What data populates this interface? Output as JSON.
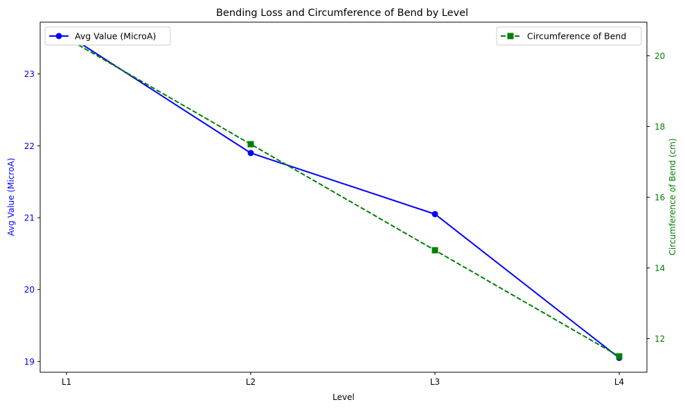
{
  "chart_data": {
    "type": "line",
    "title": "Bending Loss and Circumference of Bend by Level",
    "xlabel": "Level",
    "categories": [
      "L1",
      "L2",
      "L3",
      "L4"
    ],
    "y_left": {
      "label": "Avg Value (MicroA)",
      "ticks": [
        19,
        20,
        21,
        22,
        23
      ],
      "ylim": [
        18.85,
        23.72
      ],
      "color": "#0000ff"
    },
    "y_right": {
      "label": "Circumference of Bend (cm)",
      "ticks": [
        12,
        14,
        16,
        18,
        20
      ],
      "ylim": [
        11.05,
        20.95
      ],
      "color": "#008000"
    },
    "series": [
      {
        "name": "Avg Value (MicroA)",
        "axis": "left",
        "values": [
          23.55,
          21.9,
          21.05,
          19.05
        ],
        "color": "#0000ff",
        "marker": "circle",
        "linestyle": "solid"
      },
      {
        "name": "Circumference of Bend",
        "axis": "right",
        "values": [
          20.5,
          17.5,
          14.5,
          11.5
        ],
        "color": "#008000",
        "marker": "square",
        "linestyle": "dashed"
      }
    ],
    "legends": [
      {
        "series": 0,
        "placement": "upper left"
      },
      {
        "series": 1,
        "placement": "upper right"
      }
    ],
    "grid": false
  }
}
